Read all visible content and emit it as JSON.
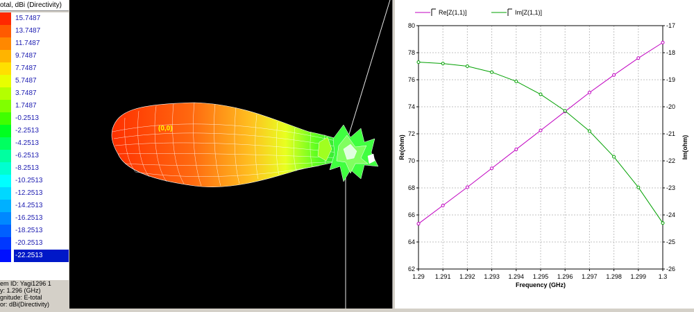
{
  "legend": {
    "title": "otal, dBi (Directivity)",
    "entries": [
      {
        "value": "15.7487",
        "color": "#ff2800"
      },
      {
        "value": "13.7487",
        "color": "#ff5a00"
      },
      {
        "value": "11.7487",
        "color": "#ff8800"
      },
      {
        "value": "9.7487",
        "color": "#ffb400"
      },
      {
        "value": "7.7487",
        "color": "#ffe000"
      },
      {
        "value": "5.7487",
        "color": "#e8ff00"
      },
      {
        "value": "3.7487",
        "color": "#b4ff00"
      },
      {
        "value": "1.7487",
        "color": "#80ff00"
      },
      {
        "value": "-0.2513",
        "color": "#40ff00"
      },
      {
        "value": "-2.2513",
        "color": "#00ff20"
      },
      {
        "value": "-4.2513",
        "color": "#00ff60"
      },
      {
        "value": "-6.2513",
        "color": "#00ffa0"
      },
      {
        "value": "-8.2513",
        "color": "#00ffd0"
      },
      {
        "value": "-10.2513",
        "color": "#00ffff"
      },
      {
        "value": "-12.2513",
        "color": "#00d8ff"
      },
      {
        "value": "-14.2513",
        "color": "#00b0ff"
      },
      {
        "value": "-16.2513",
        "color": "#0088ff"
      },
      {
        "value": "-18.2513",
        "color": "#0060ff"
      },
      {
        "value": "-20.2513",
        "color": "#0038ff"
      },
      {
        "value": "-22.2513",
        "color": "#0010ff",
        "selected": true
      }
    ]
  },
  "info": {
    "line1": "em ID: Yagi1296 1",
    "line2": "y: 1.296 (GHz)",
    "line3": "gnitude: E-total",
    "line4": "or: dBi(Directivity)"
  },
  "view3d": {
    "origin_label": "(0,0)"
  },
  "chart_data": {
    "type": "line",
    "xlabel": "Frequency (GHz)",
    "ylabel_left": "Re(ohm)",
    "ylabel_right": "Im(ohm)",
    "x": [
      1.29,
      1.291,
      1.292,
      1.293,
      1.294,
      1.295,
      1.296,
      1.297,
      1.298,
      1.299,
      1.3
    ],
    "x_ticks": [
      "1.29",
      "1.291",
      "1.292",
      "1.293",
      "1.294",
      "1.295",
      "1.296",
      "1.297",
      "1.298",
      "1.299",
      "1.3"
    ],
    "ylim_left": [
      62,
      80
    ],
    "yticks_left": [
      "62",
      "64",
      "66",
      "68",
      "70",
      "72",
      "74",
      "76",
      "78",
      "80"
    ],
    "ylim_right": [
      -26,
      -17
    ],
    "yticks_right": [
      "-26",
      "-25",
      "-24",
      "-23",
      "-22",
      "-21",
      "-20",
      "-19",
      "-18",
      "-17"
    ],
    "grid": true,
    "series": [
      {
        "name": "Re[Z(1,1)]",
        "axis": "left",
        "color": "#c000c0",
        "values": [
          65.35,
          66.7,
          68.05,
          69.45,
          70.85,
          72.25,
          73.65,
          75.05,
          76.35,
          77.6,
          78.75
        ]
      },
      {
        "name": "Im[Z(1,1)]",
        "axis": "right",
        "color": "#00a000",
        "values": [
          -18.35,
          -18.4,
          -18.5,
          -18.72,
          -19.06,
          -19.54,
          -20.15,
          -20.9,
          -21.85,
          -22.98,
          -24.3
        ]
      }
    ]
  }
}
